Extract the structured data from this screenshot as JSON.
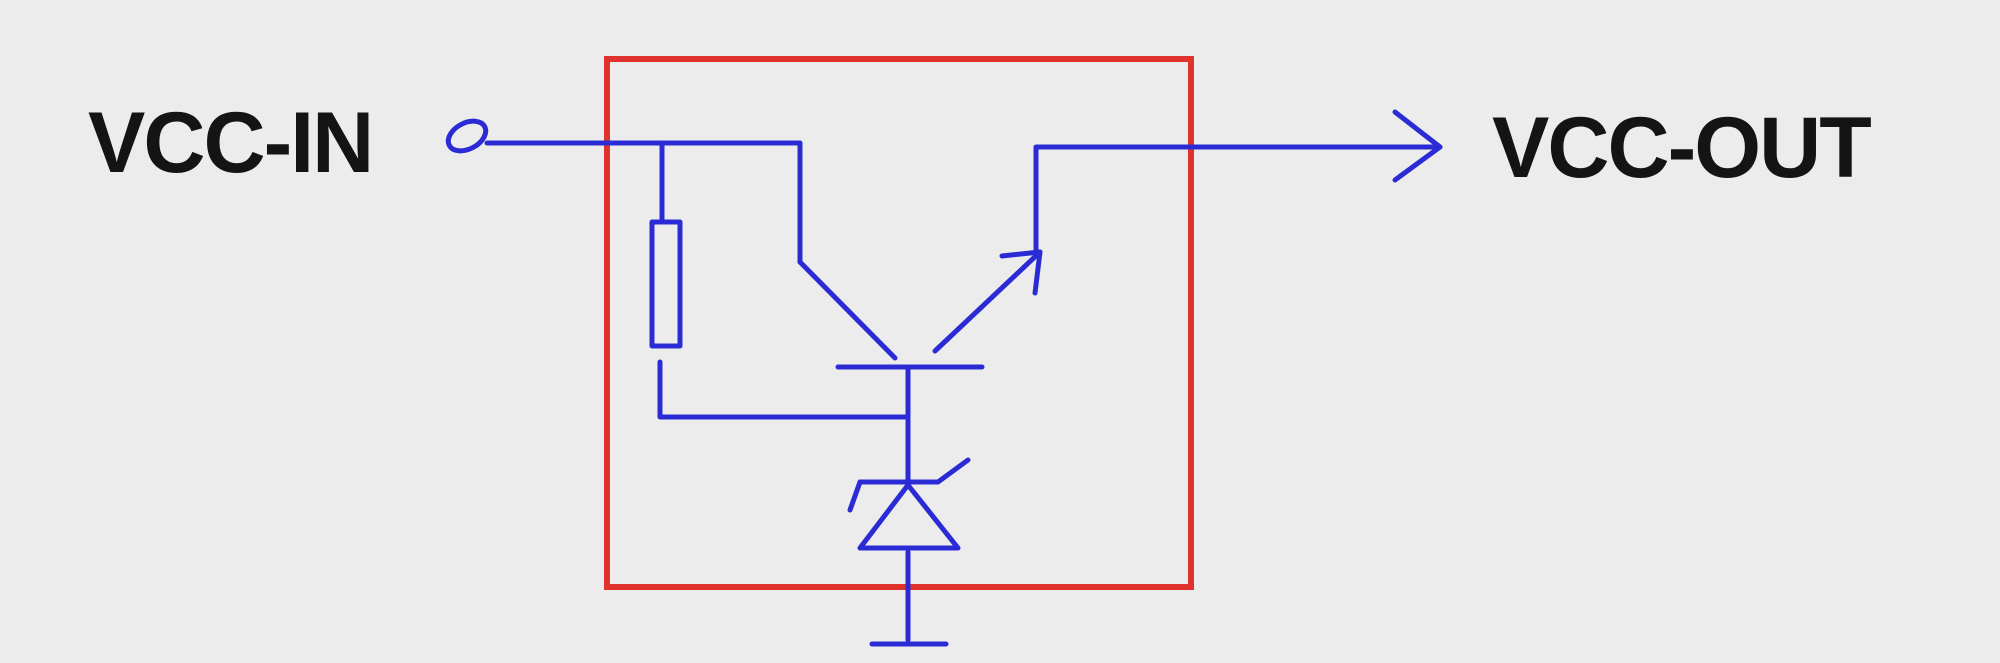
{
  "labels": {
    "input": "VCC-IN",
    "output": "VCC-OUT"
  },
  "colors": {
    "background": "#ececec",
    "wire": "#2b2bd6",
    "regulator_box": "#e0332e",
    "text": "#141414"
  },
  "components": [
    "input-terminal",
    "resistor",
    "npn-transistor",
    "zener-diode",
    "ground",
    "output-arrow"
  ]
}
